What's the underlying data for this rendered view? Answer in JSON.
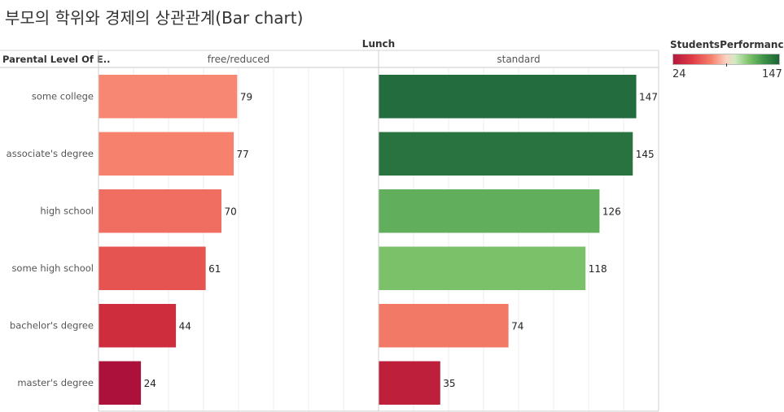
{
  "title": "부모의 학위와 경제의 상관관계(Bar chart)",
  "column_header": "Lunch",
  "row_header": "Parental Level Of E..",
  "legend": {
    "title": "StudentsPerformance..",
    "min_label": "24",
    "max_label": "147",
    "min": 24,
    "max": 147,
    "midpoint": 103
  },
  "chart_data": {
    "type": "bar",
    "orientation": "horizontal",
    "categories": [
      "some college",
      "associate's degree",
      "high school",
      "some high school",
      "bachelor's degree",
      "master's degree"
    ],
    "series": [
      {
        "name": "free/reduced",
        "values": [
          79,
          77,
          70,
          61,
          44,
          24
        ]
      },
      {
        "name": "standard",
        "values": [
          147,
          145,
          126,
          118,
          74,
          35
        ]
      }
    ],
    "xlim": [
      0,
      160
    ],
    "grid": true,
    "legend_position": "top-right"
  }
}
